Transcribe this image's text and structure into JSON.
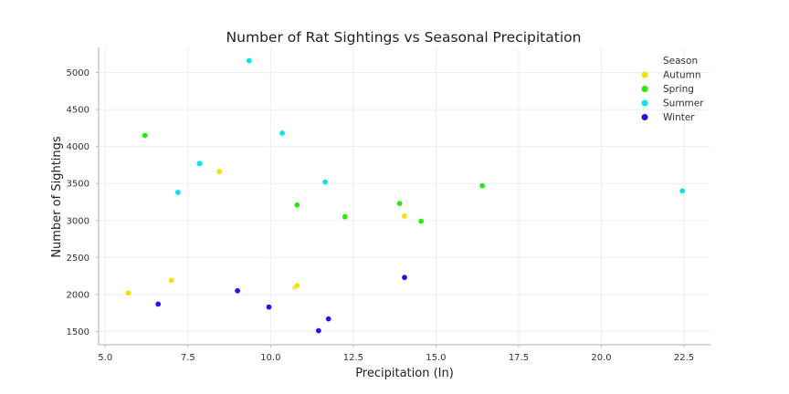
{
  "chart_data": {
    "type": "scatter",
    "title": "Number of Rat Sightings vs Seasonal Precipitation",
    "xlabel": "Precipitation (In)",
    "ylabel": "Number of Sightings",
    "xlim": [
      4.8,
      23.3
    ],
    "ylim": [
      1320,
      5340
    ],
    "xticks": [
      5.0,
      7.5,
      10.0,
      12.5,
      15.0,
      17.5,
      20.0,
      22.5
    ],
    "xtick_labels": [
      "5.0",
      "7.5",
      "10.0",
      "12.5",
      "15.0",
      "17.5",
      "20.0",
      "22.5"
    ],
    "yticks": [
      1500,
      2000,
      2500,
      3000,
      3500,
      4000,
      4500,
      5000
    ],
    "ytick_labels": [
      "1500",
      "2000",
      "2500",
      "3000",
      "3500",
      "4000",
      "4500",
      "5000"
    ],
    "grid": true,
    "legend_title": "Season",
    "legend_position": "top-right",
    "series": [
      {
        "name": "Autumn",
        "color": "#f5e000",
        "points": [
          {
            "x": 5.7,
            "y": 2020
          },
          {
            "x": 7.0,
            "y": 2190
          },
          {
            "x": 8.45,
            "y": 3660
          },
          {
            "x": 10.75,
            "y": 2100
          },
          {
            "x": 10.8,
            "y": 2120
          },
          {
            "x": 14.05,
            "y": 3060
          }
        ]
      },
      {
        "name": "Spring",
        "color": "#22ee00",
        "points": [
          {
            "x": 6.2,
            "y": 4150
          },
          {
            "x": 10.8,
            "y": 3210
          },
          {
            "x": 12.25,
            "y": 3050
          },
          {
            "x": 13.9,
            "y": 3230
          },
          {
            "x": 14.55,
            "y": 2990
          },
          {
            "x": 16.4,
            "y": 3470
          }
        ]
      },
      {
        "name": "Summer",
        "color": "#00e5ee",
        "points": [
          {
            "x": 7.2,
            "y": 3380
          },
          {
            "x": 7.85,
            "y": 3770
          },
          {
            "x": 9.35,
            "y": 5160
          },
          {
            "x": 10.35,
            "y": 4180
          },
          {
            "x": 11.65,
            "y": 3520
          },
          {
            "x": 22.45,
            "y": 3400
          }
        ]
      },
      {
        "name": "Winter",
        "color": "#2a10e6",
        "points": [
          {
            "x": 6.6,
            "y": 1870
          },
          {
            "x": 9.0,
            "y": 2050
          },
          {
            "x": 9.95,
            "y": 1830
          },
          {
            "x": 11.45,
            "y": 1510
          },
          {
            "x": 11.75,
            "y": 1670
          },
          {
            "x": 14.05,
            "y": 2230
          }
        ]
      }
    ]
  }
}
